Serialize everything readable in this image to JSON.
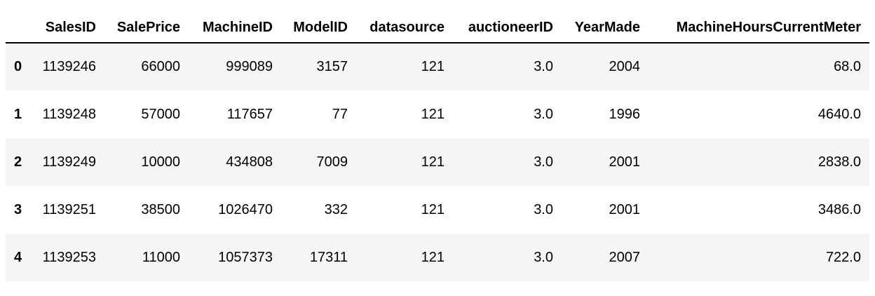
{
  "table": {
    "index_header": "",
    "columns": [
      "SalesID",
      "SalePrice",
      "MachineID",
      "ModelID",
      "datasource",
      "auctioneerID",
      "YearMade",
      "MachineHoursCurrentMeter"
    ],
    "rows": [
      {
        "index": "0",
        "cells": [
          "1139246",
          "66000",
          "999089",
          "3157",
          "121",
          "3.0",
          "2004",
          "68.0"
        ]
      },
      {
        "index": "1",
        "cells": [
          "1139248",
          "57000",
          "117657",
          "77",
          "121",
          "3.0",
          "1996",
          "4640.0"
        ]
      },
      {
        "index": "2",
        "cells": [
          "1139249",
          "10000",
          "434808",
          "7009",
          "121",
          "3.0",
          "2001",
          "2838.0"
        ]
      },
      {
        "index": "3",
        "cells": [
          "1139251",
          "38500",
          "1026470",
          "332",
          "121",
          "3.0",
          "2001",
          "3486.0"
        ]
      },
      {
        "index": "4",
        "cells": [
          "1139253",
          "11000",
          "1057373",
          "17311",
          "121",
          "3.0",
          "2007",
          "722.0"
        ]
      }
    ]
  },
  "colors": {
    "stripe": "#f5f5f5",
    "header_rule": "#000000",
    "text": "#000000"
  }
}
